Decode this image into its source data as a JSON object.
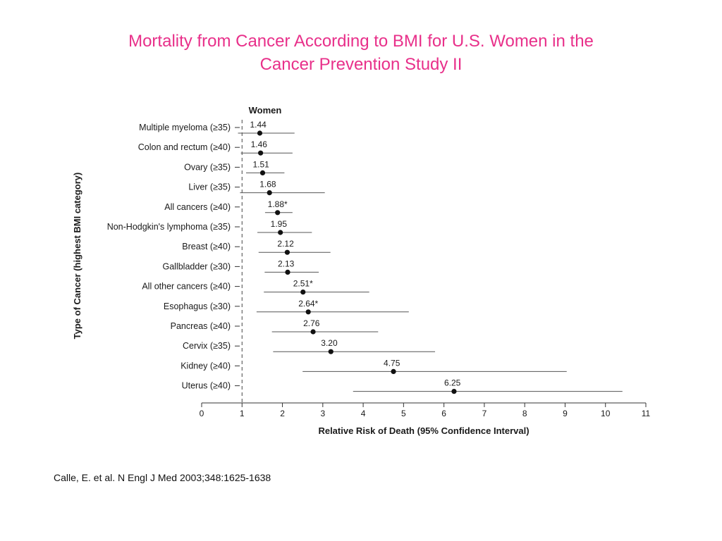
{
  "slide": {
    "title_line1": "Mortality from Cancer According to BMI for U.S. Women in the",
    "title_line2": "Cancer Prevention Study II",
    "title_color": "#e8308a",
    "citation": "Calle, E. et al. N Engl J Med 2003;348:1625-1638"
  },
  "chart_data": {
    "type": "forest",
    "panel_title": "Women",
    "xlabel": "Relative Risk of Death (95% Confidence Interval)",
    "ylabel": "Type of Cancer (highest BMI category)",
    "xlim": [
      0,
      11
    ],
    "xticks": [
      0,
      1,
      2,
      3,
      4,
      5,
      6,
      7,
      8,
      9,
      10,
      11
    ],
    "reference_line": 1,
    "rows": [
      {
        "category": "Multiple myeloma (≥35)",
        "value": 1.44,
        "label": "1.44",
        "ci": [
          0.9,
          2.3
        ]
      },
      {
        "category": "Colon and rectum (≥40)",
        "value": 1.46,
        "label": "1.46",
        "ci": [
          0.97,
          2.25
        ]
      },
      {
        "category": "Ovary (≥35)",
        "value": 1.51,
        "label": "1.51",
        "ci": [
          1.1,
          2.05
        ]
      },
      {
        "category": "Liver (≥35)",
        "value": 1.68,
        "label": "1.68",
        "ci": [
          0.95,
          3.05
        ]
      },
      {
        "category": "All cancers (≥40)",
        "value": 1.88,
        "label": "1.88*",
        "ci": [
          1.57,
          2.25
        ]
      },
      {
        "category": "Non-Hodgkin's lymphoma (≥35)",
        "value": 1.95,
        "label": "1.95",
        "ci": [
          1.38,
          2.73
        ]
      },
      {
        "category": "Breast (≥40)",
        "value": 2.12,
        "label": "2.12",
        "ci": [
          1.41,
          3.19
        ]
      },
      {
        "category": "Gallbladder (≥30)",
        "value": 2.13,
        "label": "2.13",
        "ci": [
          1.56,
          2.9
        ]
      },
      {
        "category": "All other cancers (≥40)",
        "value": 2.51,
        "label": "2.51*",
        "ci": [
          1.54,
          4.15
        ]
      },
      {
        "category": "Esophagus (≥30)",
        "value": 2.64,
        "label": "2.64*",
        "ci": [
          1.36,
          5.13
        ]
      },
      {
        "category": "Pancreas (≥40)",
        "value": 2.76,
        "label": "2.76",
        "ci": [
          1.74,
          4.37
        ]
      },
      {
        "category": "Cervix (≥35)",
        "value": 3.2,
        "label": "3.20",
        "ci": [
          1.77,
          5.78
        ]
      },
      {
        "category": "Kidney (≥40)",
        "value": 4.75,
        "label": "4.75",
        "ci": [
          2.5,
          9.04
        ]
      },
      {
        "category": "Uterus (≥40)",
        "value": 6.25,
        "label": "6.25",
        "ci": [
          3.75,
          10.42
        ]
      }
    ]
  }
}
